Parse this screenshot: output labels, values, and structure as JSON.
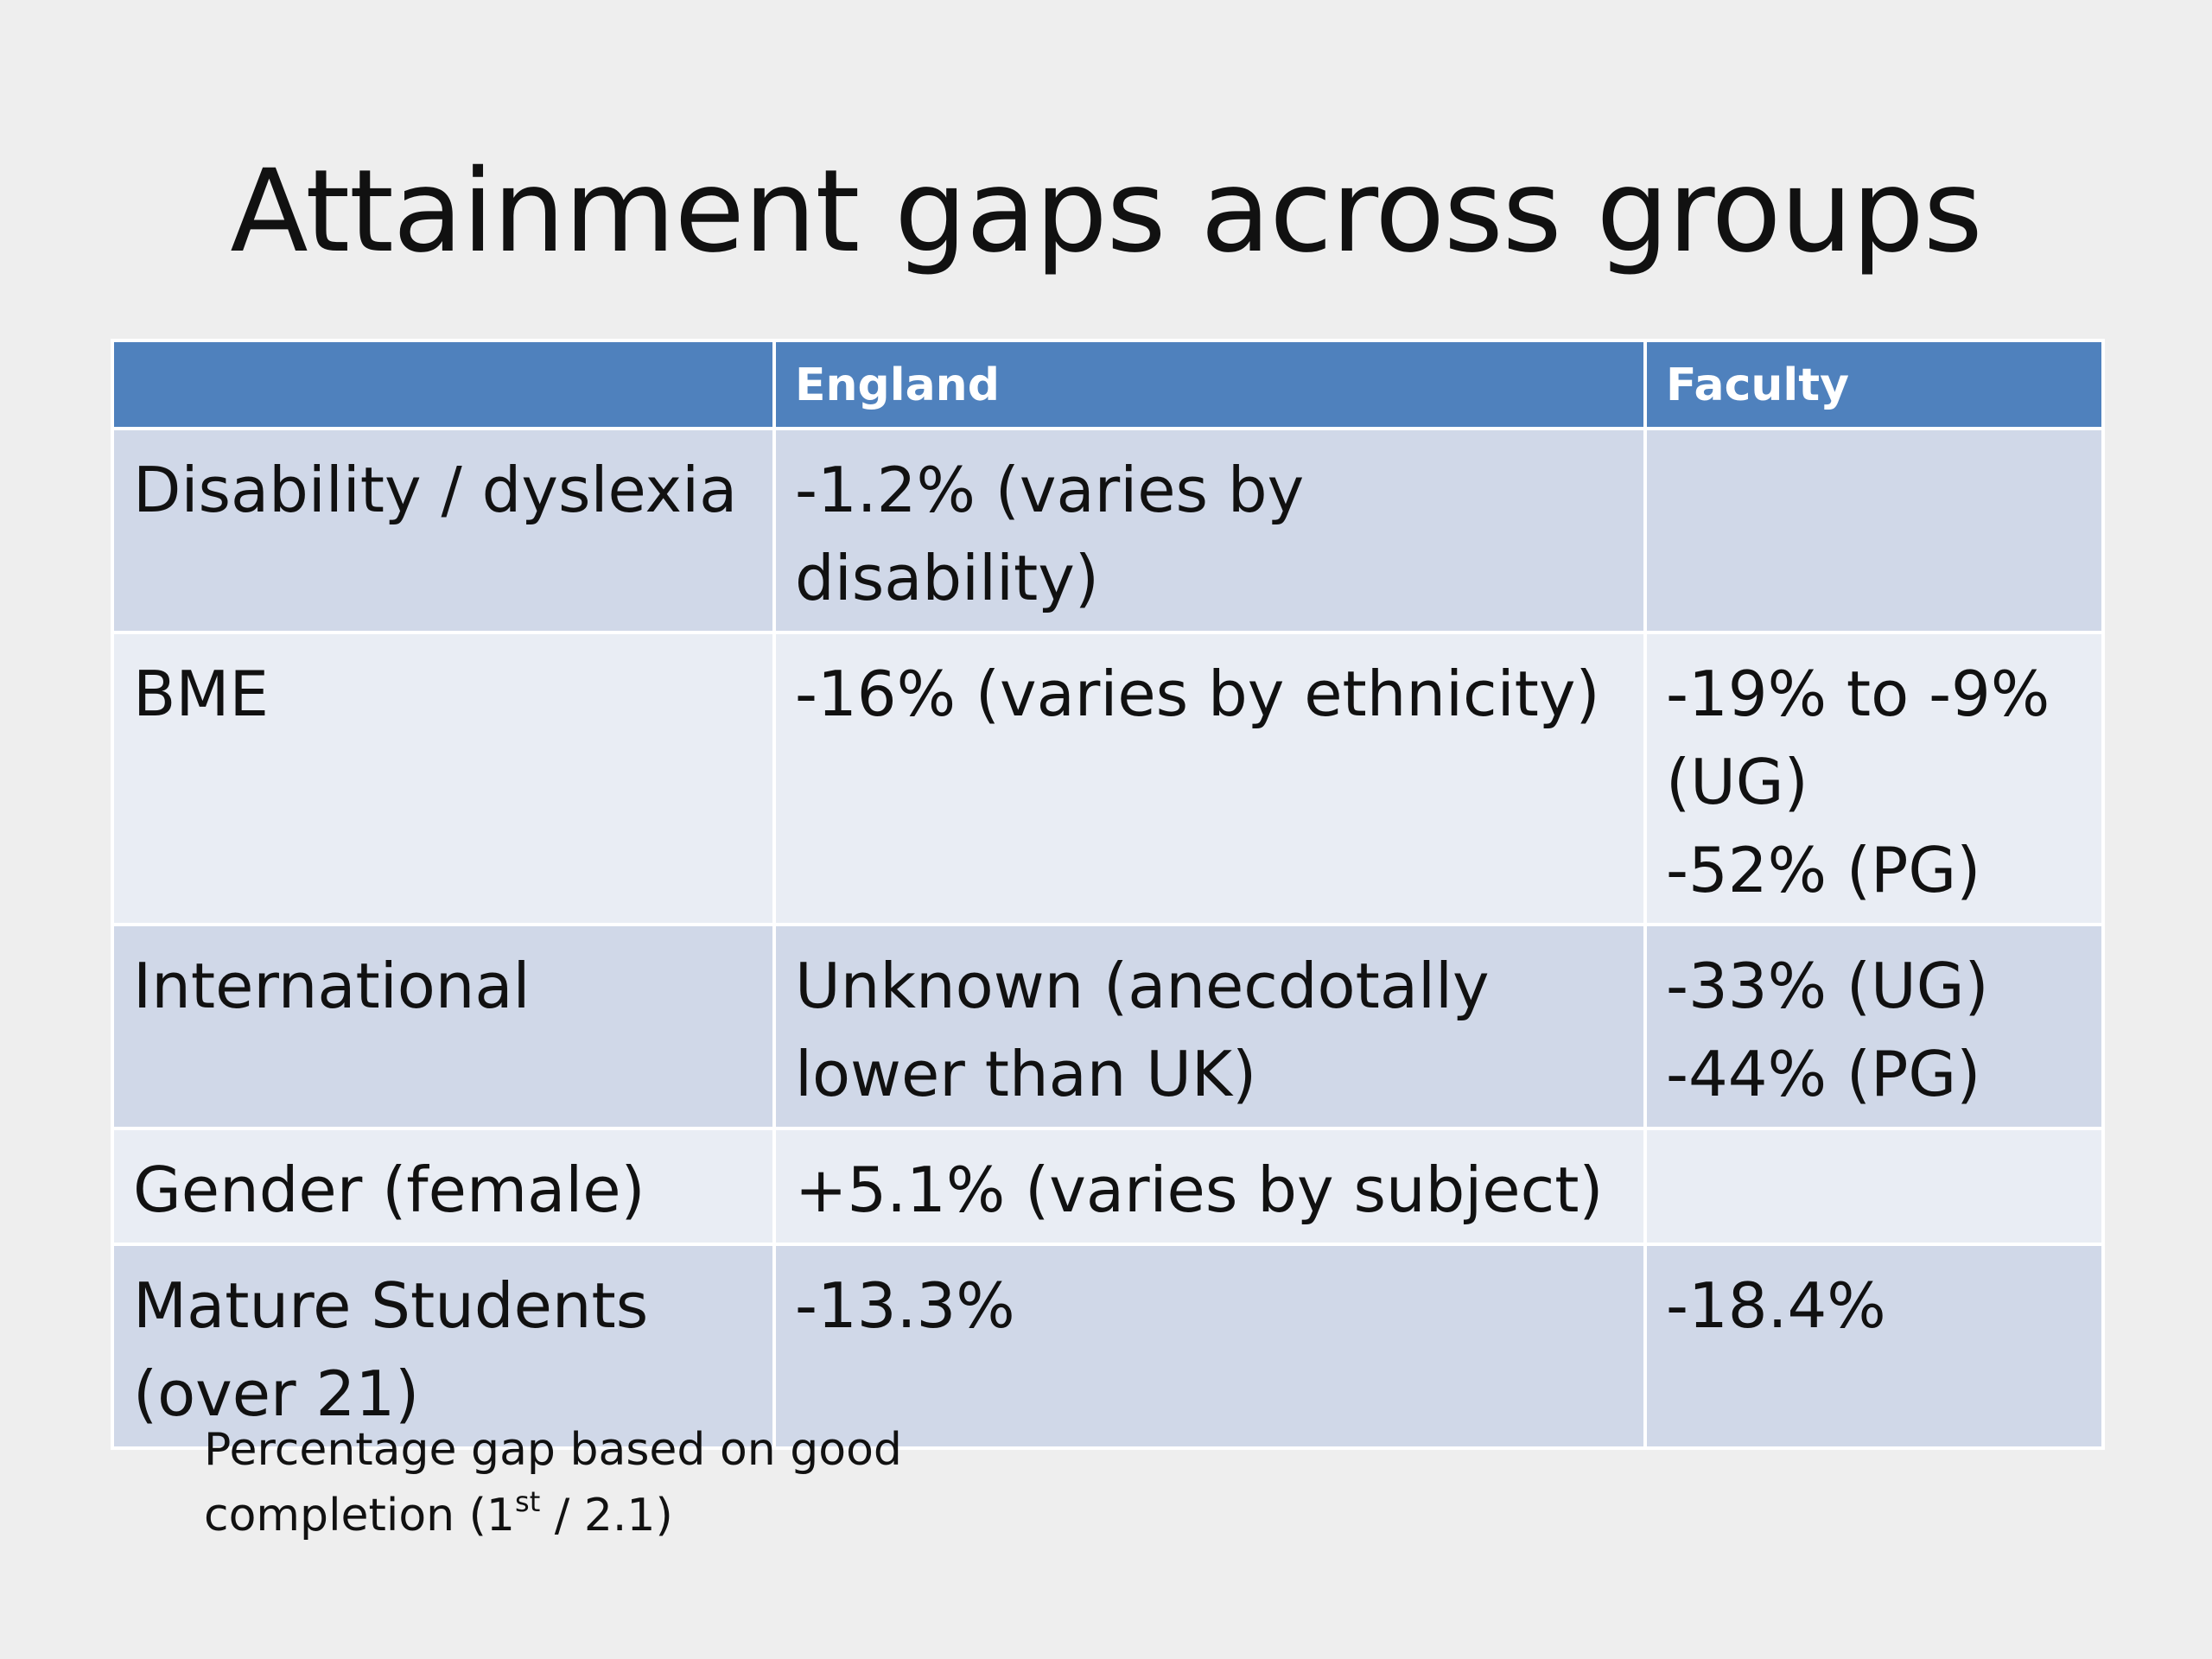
{
  "title": "Attainment gaps across groups",
  "table": {
    "headers": [
      "",
      "England",
      "Faculty"
    ],
    "rows": [
      {
        "group": [
          "Disability / dyslexia"
        ],
        "england": [
          "-1.2% (varies by disability)"
        ],
        "faculty": []
      },
      {
        "group": [
          "BME"
        ],
        "england": [
          "-16% (varies by ethnicity)"
        ],
        "faculty": [
          "-19% to -9%",
          "(UG)",
          "-52% (PG)"
        ]
      },
      {
        "group": [
          "International"
        ],
        "england": [
          "Unknown (anecdotally",
          "lower than UK)"
        ],
        "faculty": [
          "-33% (UG)",
          "-44% (PG)"
        ]
      },
      {
        "group": [
          "Gender (female)"
        ],
        "england": [
          "+5.1% (varies by subject)"
        ],
        "faculty": []
      },
      {
        "group": [
          "Mature Students",
          "(over 21)"
        ],
        "england": [
          "-13.3%"
        ],
        "faculty": [
          "-18.4%"
        ]
      }
    ]
  },
  "footnote": {
    "line1": "Percentage gap based on good",
    "line2_before": "completion (1",
    "line2_sup": "st",
    "line2_after": " / 2.1)"
  }
}
